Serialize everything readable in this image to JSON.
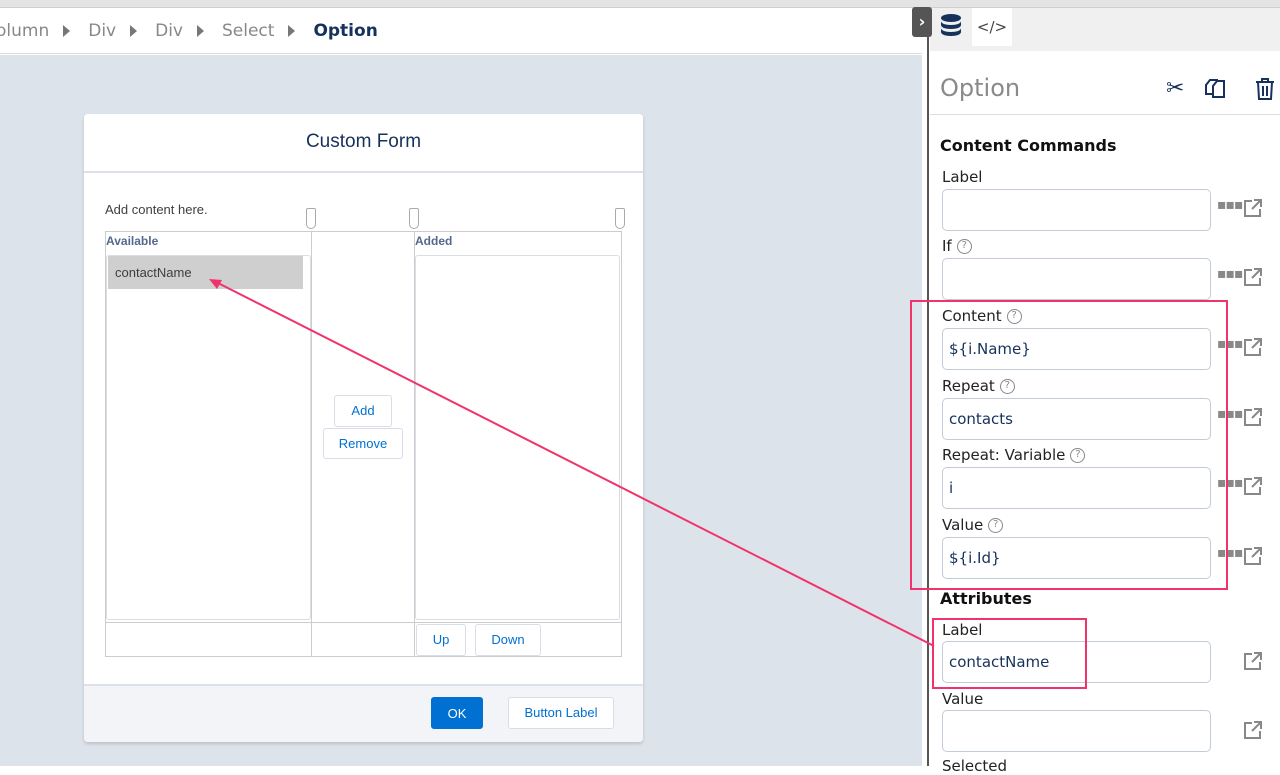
{
  "breadcrumb": {
    "items": [
      "olumn",
      "Div",
      "Div",
      "Select"
    ],
    "current": "Option"
  },
  "form": {
    "title": "Custom Form",
    "hint": "Add content here.",
    "available_header": "Available",
    "added_header": "Added",
    "available_items": [
      "contactName"
    ],
    "add_label": "Add",
    "remove_label": "Remove",
    "up_label": "Up",
    "down_label": "Down",
    "ok_label": "OK",
    "button_label": "Button Label"
  },
  "panel": {
    "title": "Option",
    "content_commands": "Content Commands",
    "fields": [
      {
        "label": "Label",
        "value": "",
        "help": false
      },
      {
        "label": "If",
        "value": "",
        "help": true
      },
      {
        "label": "Content",
        "value": "${i.Name}",
        "help": true
      },
      {
        "label": "Repeat",
        "value": "contacts",
        "help": true
      },
      {
        "label": "Repeat: Variable",
        "value": "i",
        "help": true
      },
      {
        "label": "Value",
        "value": "${i.Id}",
        "help": true
      }
    ],
    "attributes": "Attributes",
    "attr_fields": [
      {
        "label": "Label",
        "value": "contactName"
      },
      {
        "label": "Value",
        "value": ""
      },
      {
        "label": "Selected"
      }
    ]
  },
  "colors": {
    "accent": "#0070d2",
    "highlight": "#f0336b",
    "title": "#16325c"
  }
}
